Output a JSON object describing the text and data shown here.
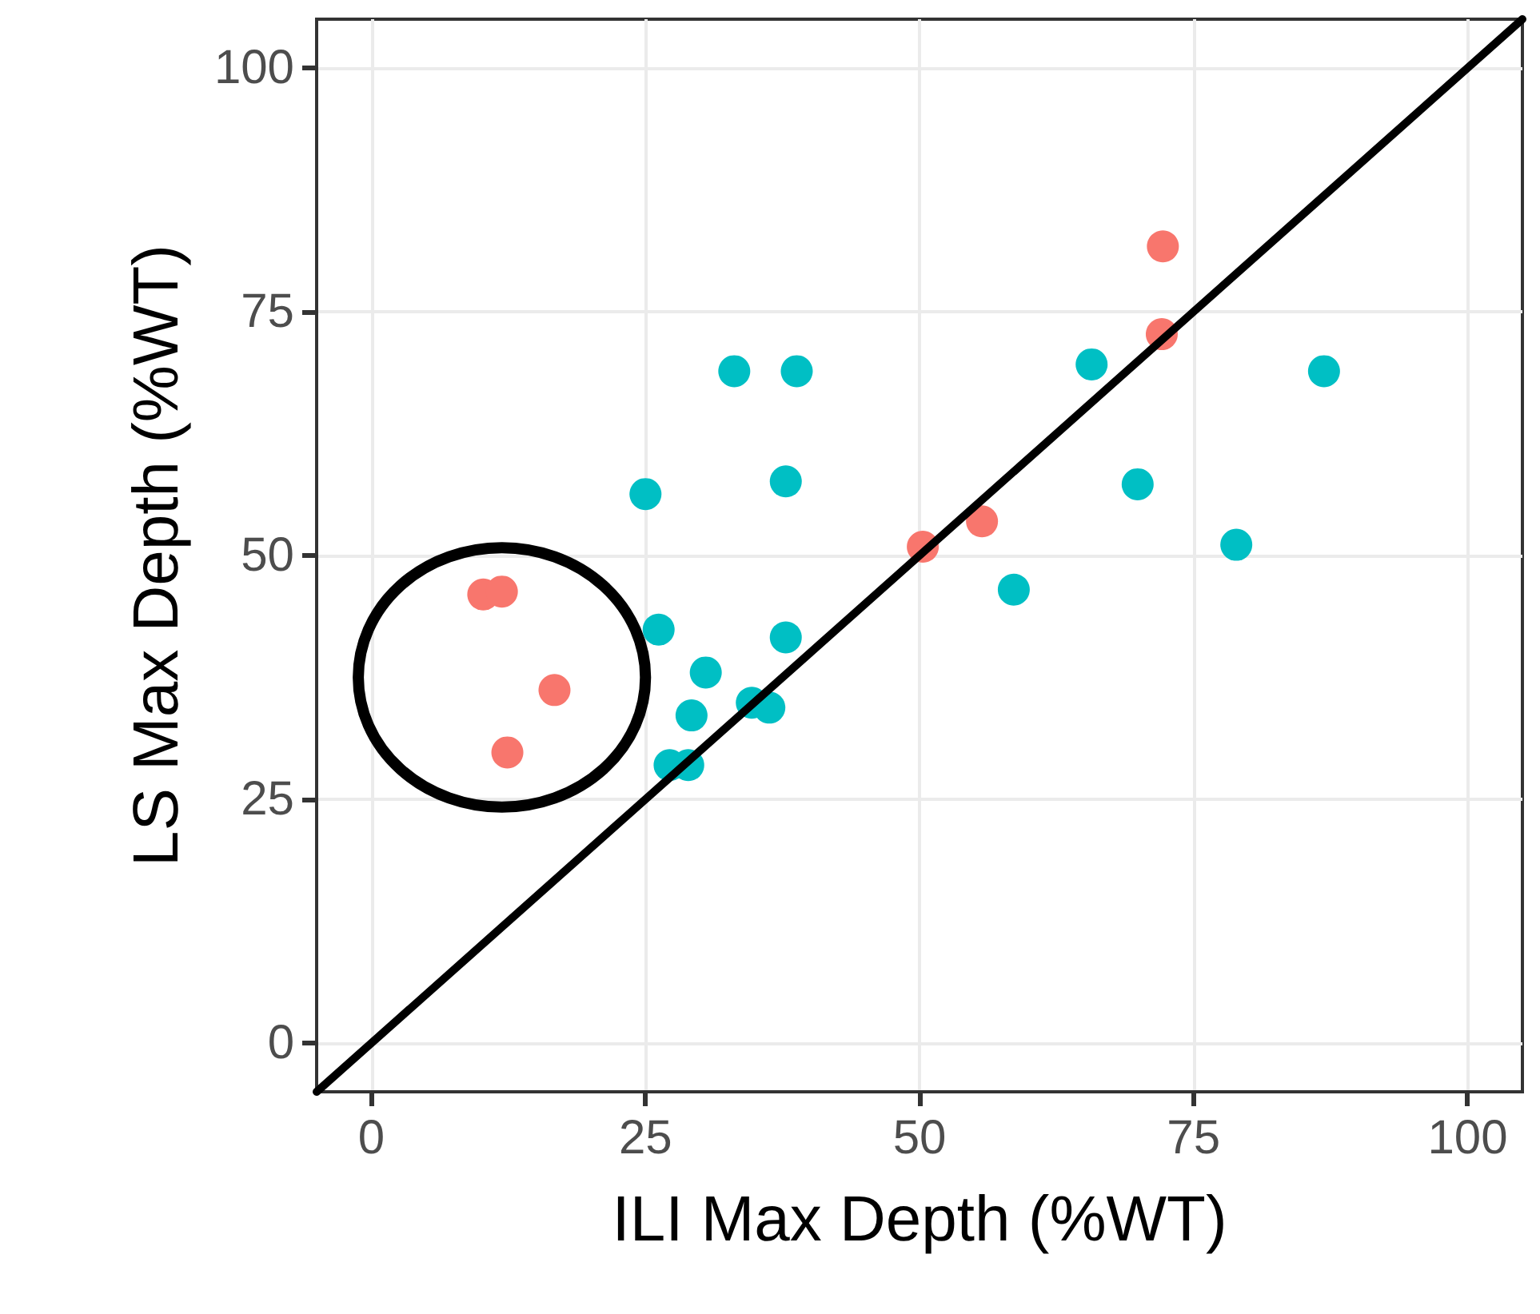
{
  "chart_data": {
    "type": "scatter",
    "xlabel": "ILI Max Depth (%WT)",
    "ylabel": "LS Max Depth (%WT)",
    "xlim": [
      -5,
      105
    ],
    "ylim": [
      -5,
      105
    ],
    "xticks": [
      0,
      25,
      50,
      75,
      100
    ],
    "yticks": [
      0,
      25,
      50,
      75,
      100
    ],
    "grid": true,
    "marker": "circle",
    "series": [
      {
        "color": "#f8766d",
        "x": [
          10.2,
          11.9,
          16.7,
          12.4,
          50.3,
          55.7,
          72.2,
          72.1
        ],
        "values": [
          46.0,
          46.3,
          36.2,
          29.8,
          50.9,
          53.5,
          81.7,
          72.7
        ]
      },
      {
        "color": "#00bfc4",
        "x": [
          26.2,
          37.8,
          30.5,
          29.2,
          34.7,
          36.3,
          27.2,
          28.9,
          25.0,
          37.8,
          33.1,
          38.8,
          65.7,
          86.9,
          69.9,
          78.9,
          58.6
        ],
        "values": [
          42.4,
          41.6,
          38.0,
          33.6,
          34.9,
          34.4,
          28.5,
          28.5,
          56.3,
          57.6,
          68.9,
          68.9,
          69.6,
          68.9,
          57.3,
          51.1,
          46.5
        ]
      },
      {
        "type": "line",
        "color": "#000000",
        "marker": "none",
        "x": [
          -5,
          105
        ],
        "values": [
          -5,
          105
        ]
      }
    ]
  }
}
